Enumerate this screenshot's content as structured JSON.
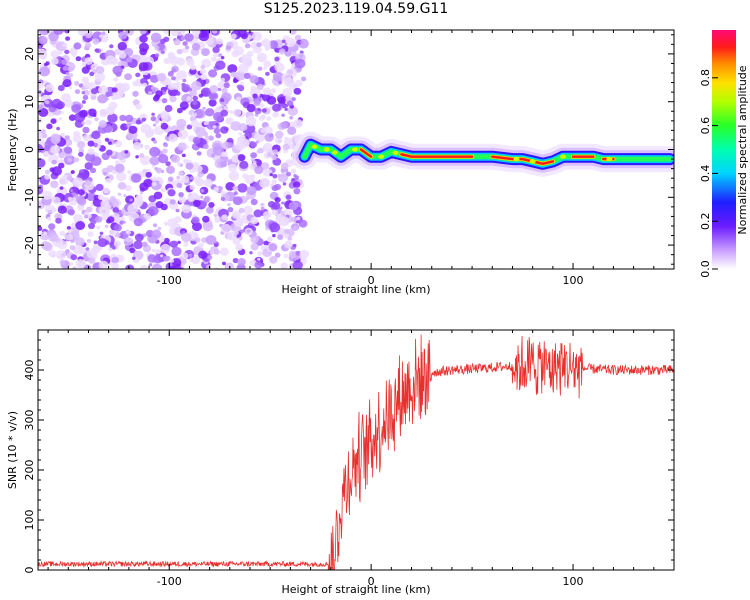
{
  "title": "S125.2023.119.04.59.G11",
  "colors": {
    "snr_line": "#e8302e",
    "ridge_outer": "#2a16ff",
    "noise": "#8a2be2"
  },
  "chart_data": [
    {
      "type": "heatmap",
      "xlabel": "Height of straight line (km)",
      "ylabel": "Frequency (Hz)",
      "xlim": [
        -165,
        150
      ],
      "ylim": [
        -25,
        25
      ],
      "xticks": [
        "-100",
        "0",
        "100"
      ],
      "xtick_values": [
        -100,
        0,
        100
      ],
      "yticks": [
        "-20",
        "-10",
        "0",
        "10",
        "20"
      ],
      "ytick_values": [
        -20,
        -10,
        0,
        10,
        20
      ],
      "noise_region_xmax": -33,
      "ridge": {
        "x": [
          -33,
          -30,
          -25,
          -20,
          -15,
          -10,
          -5,
          0,
          5,
          10,
          15,
          20,
          30,
          40,
          50,
          60,
          70,
          75,
          80,
          85,
          90,
          95,
          100,
          105,
          110,
          115,
          120,
          130,
          140,
          148
        ],
        "frequency": [
          -1.5,
          1,
          0,
          0,
          -1.5,
          0,
          0,
          -1.5,
          -1.5,
          -0.5,
          -1,
          -1.5,
          -1.5,
          -1.5,
          -1.5,
          -1.5,
          -2,
          -2,
          -2.5,
          -3,
          -2.5,
          -1.5,
          -1.5,
          -1.5,
          -1.5,
          -2,
          -2,
          -2,
          -2,
          -2
        ]
      },
      "colorbar": {
        "label": "Normalized spectral amplitude",
        "ticks": [
          "0.0",
          "0.2",
          "0.4",
          "0.6",
          "0.8"
        ],
        "tick_values": [
          0,
          0.2,
          0.4,
          0.6,
          0.8
        ],
        "range": [
          0,
          1
        ]
      }
    },
    {
      "type": "line",
      "xlabel": "Height of straight line (km)",
      "ylabel": "SNR (10 * v/v)",
      "xlim": [
        -165,
        150
      ],
      "ylim": [
        0,
        480
      ],
      "xticks": [
        "-100",
        "0",
        "100"
      ],
      "xtick_values": [
        -100,
        0,
        100
      ],
      "yticks": [
        "0",
        "100",
        "200",
        "300",
        "400"
      ],
      "ytick_values": [
        0,
        100,
        200,
        300,
        400
      ],
      "series": [
        {
          "x": [
            -165,
            -100,
            -40,
            -20,
            -18,
            -15,
            -10,
            -5,
            0,
            5,
            10,
            15,
            20,
            25,
            30,
            40,
            50,
            60,
            70,
            80,
            90,
            100,
            110,
            120,
            130,
            140,
            150
          ],
          "values": [
            12,
            12,
            12,
            12,
            30,
            130,
            200,
            230,
            260,
            290,
            320,
            350,
            370,
            385,
            395,
            400,
            402,
            405,
            408,
            410,
            408,
            405,
            402,
            400,
            400,
            400,
            400
          ]
        }
      ]
    }
  ]
}
